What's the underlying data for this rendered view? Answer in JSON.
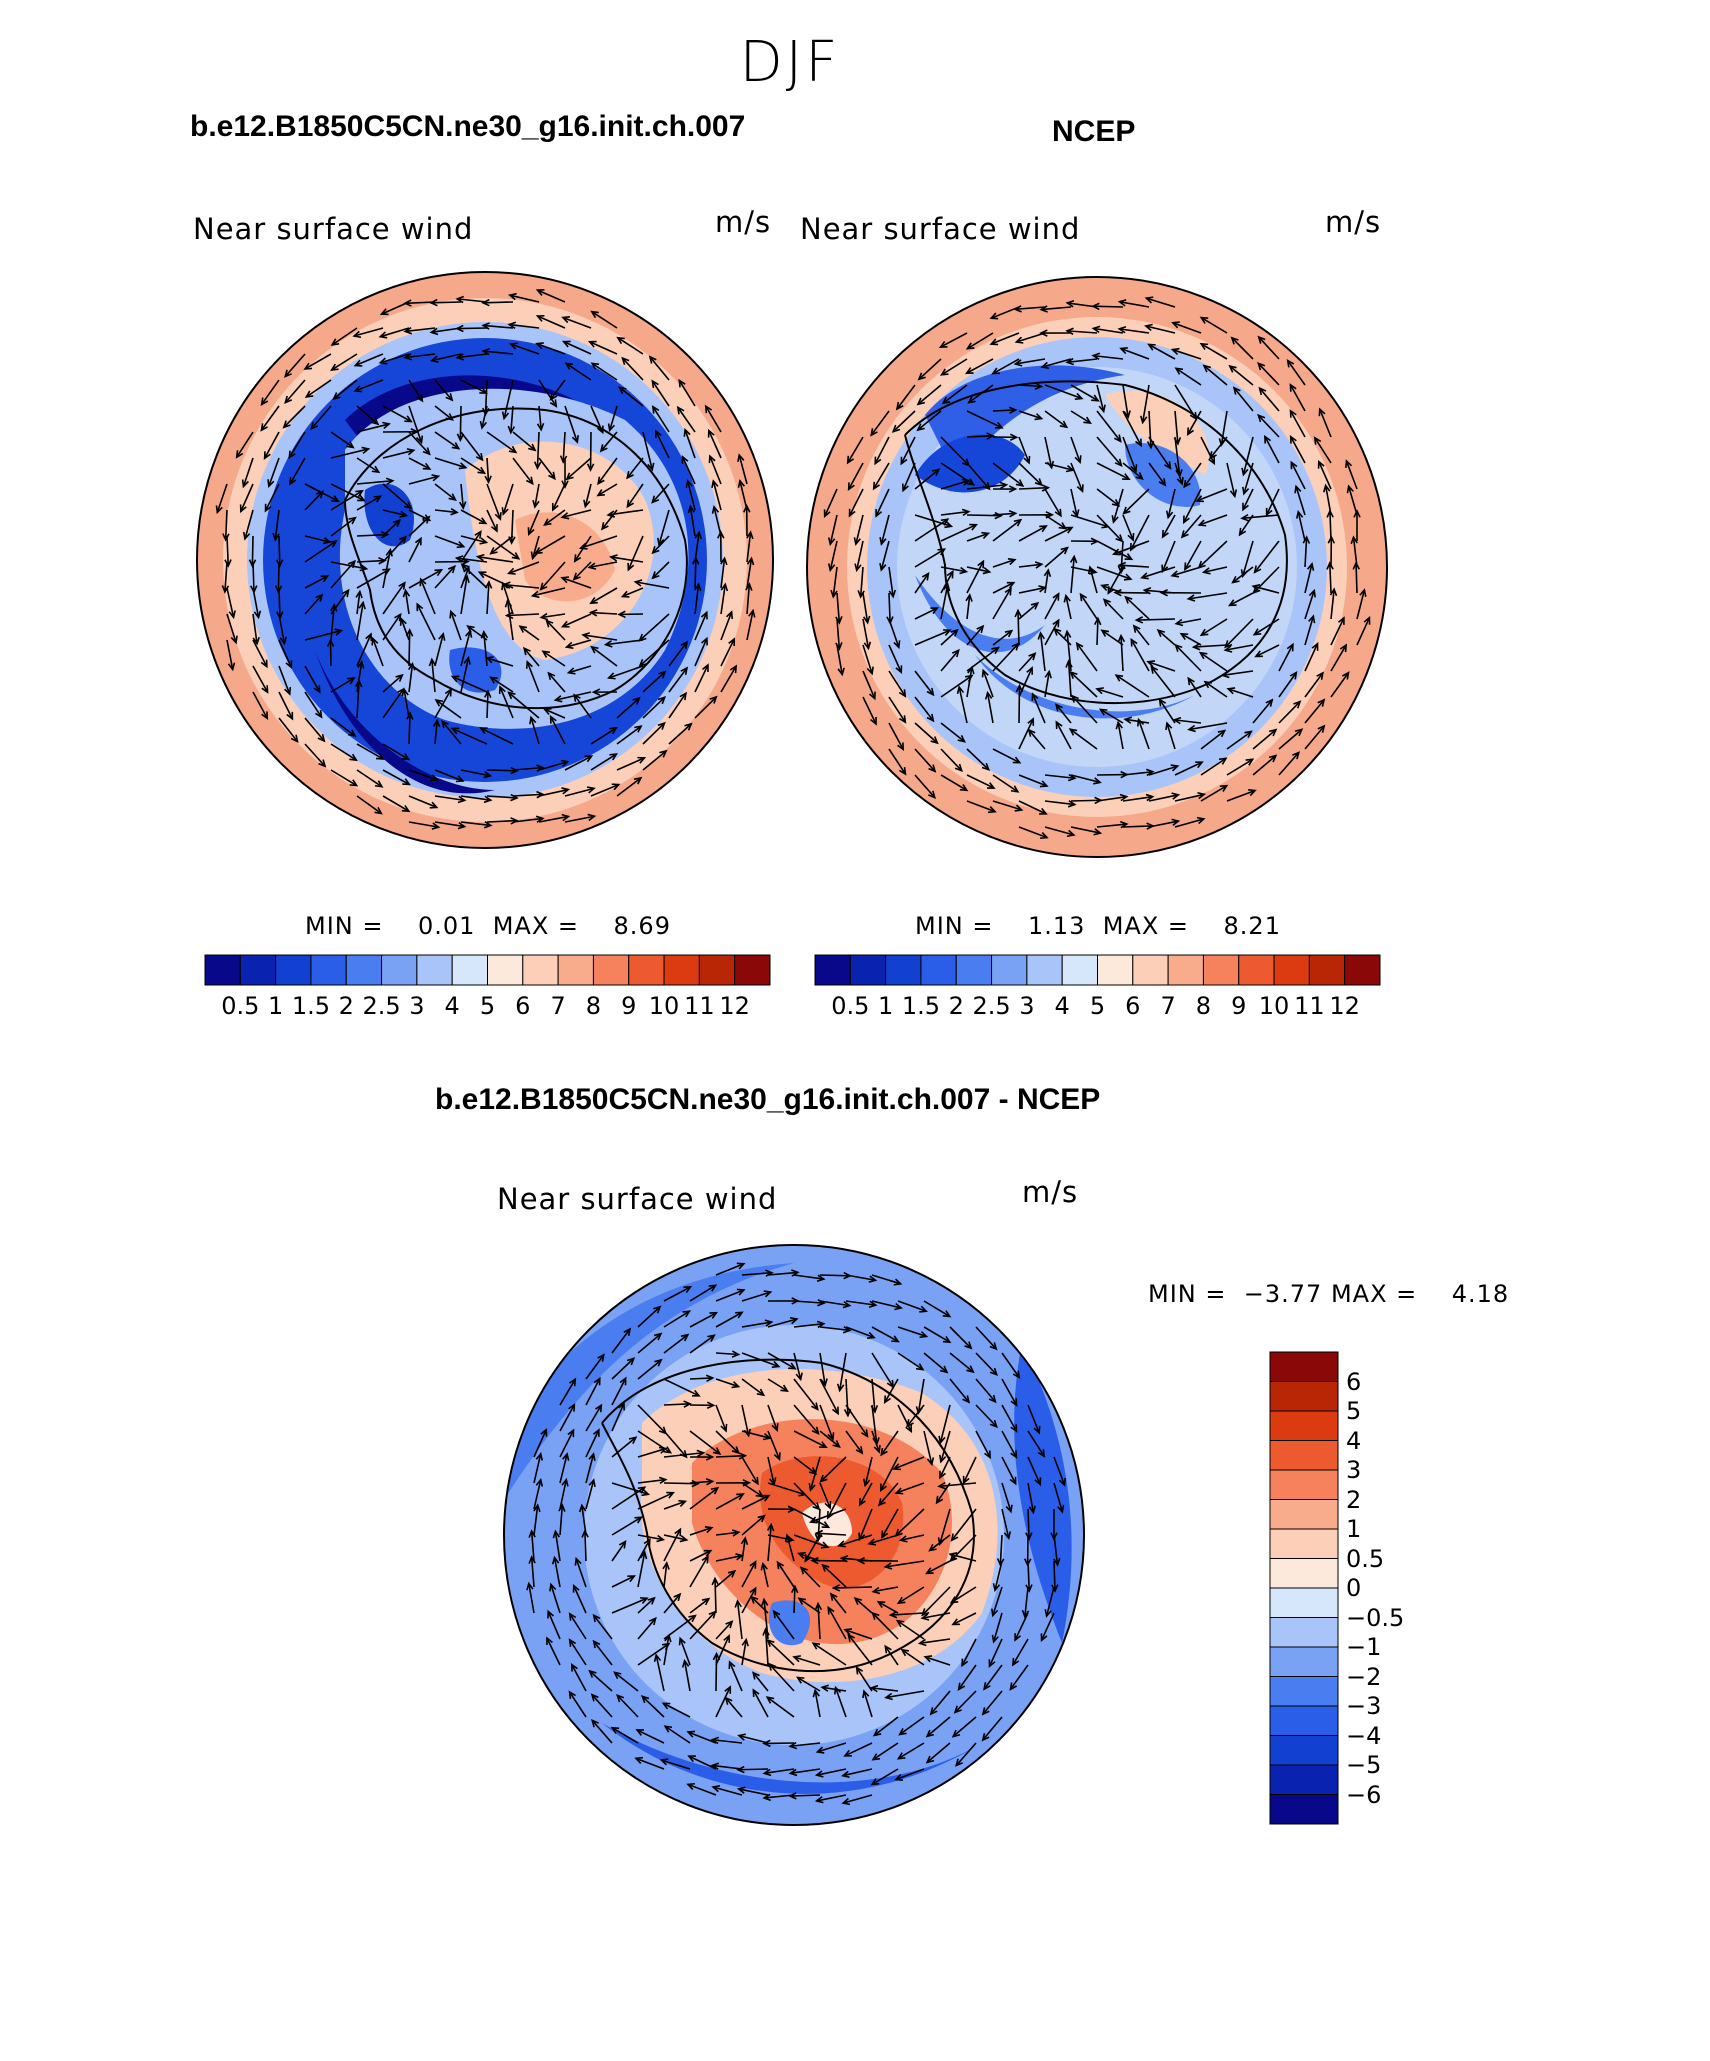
{
  "season": "DJF",
  "top_left": {
    "title": "b.e12.B1850C5CN.ne30_g16.init.ch.007",
    "variable": "Near surface wind",
    "units": "m/s",
    "stats": {
      "min_label": "MIN =",
      "min": "0.01",
      "max_label": "MAX =",
      "max": "8.69"
    }
  },
  "top_right": {
    "title": "NCEP",
    "variable": "Near surface wind",
    "units": "m/s",
    "stats": {
      "min_label": "MIN =",
      "min": "1.13",
      "max_label": "MAX =",
      "max": "8.21"
    }
  },
  "bottom": {
    "title": "b.e12.B1850C5CN.ne30_g16.init.ch.007 - NCEP",
    "variable": "Near surface wind",
    "units": "m/s",
    "stats": {
      "min_label": "MIN =",
      "min": "−3.77",
      "max_label": "MAX =",
      "max": "4.18"
    }
  },
  "abs_colorbar": {
    "ticks": [
      "0.5",
      "1",
      "1.5",
      "2",
      "2.5",
      "3",
      "4",
      "5",
      "6",
      "7",
      "8",
      "9",
      "10",
      "11",
      "12"
    ],
    "colors": [
      "#08088a",
      "#0a22b0",
      "#1240d0",
      "#2a5ee8",
      "#4a7ef0",
      "#7aa2f4",
      "#a9c4f8",
      "#d6e6fb",
      "#fde9dc",
      "#fcd0b8",
      "#f9ac8c",
      "#f5825c",
      "#ee5a30",
      "#dc3a10",
      "#b82605",
      "#8a0808"
    ]
  },
  "diff_colorbar": {
    "ticks": [
      "6",
      "5",
      "4",
      "3",
      "2",
      "1",
      "0.5",
      "0",
      "−0.5",
      "−1",
      "−2",
      "−3",
      "−4",
      "−5",
      "−6"
    ],
    "colors": [
      "#8a0808",
      "#b82605",
      "#dc3a10",
      "#ee5a30",
      "#f5825c",
      "#f9ac8c",
      "#fcd0b8",
      "#fde9dc",
      "#d6e6fb",
      "#a9c4f8",
      "#7aa2f4",
      "#4a7ef0",
      "#2a5ee8",
      "#1240d0",
      "#0a22b0",
      "#08088a"
    ]
  },
  "maps": {
    "model": {
      "ring_color": "#f5a88a",
      "inner_color": "#1646d8",
      "interior_color": "#a9c4f8",
      "accent_color": "#f7b79c"
    },
    "ncep": {
      "ring_color": "#f5a88a",
      "inner_color": "#c2d6f8",
      "interior_color": "#7aa2f4",
      "accent_color": "#2f5fe6"
    },
    "diff": {
      "ring_color": "#4a7ef0",
      "inner_color": "#7aa2f4",
      "interior_color": "#f5825c",
      "accent_color": "#ee5a30"
    }
  }
}
